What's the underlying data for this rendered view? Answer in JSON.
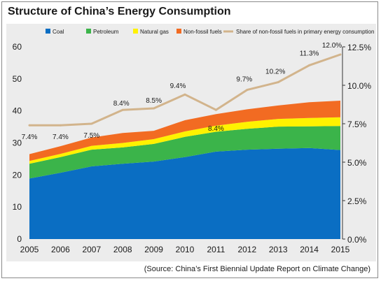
{
  "title": "Structure of China’s Energy Consumption",
  "source": "(Source: China’s First Biennial Update Report on Climate Change)",
  "colors": {
    "coal": "#0a6ec3",
    "petroleum": "#3bb44a",
    "natural_gas": "#fff200",
    "non_fossil": "#f26b22",
    "share_line": "#d2b48c",
    "panel": "#ececec"
  },
  "chart_data": {
    "type": "area",
    "stacked": true,
    "title": "Structure of China’s Energy Consumption",
    "x": [
      "2005",
      "2006",
      "2007",
      "2008",
      "2009",
      "2010",
      "2011",
      "2012",
      "2013",
      "2014",
      "2015"
    ],
    "series": [
      {
        "name": "Coal",
        "values": [
          18.9,
          20.7,
          22.7,
          23.5,
          24.2,
          25.6,
          27.3,
          27.9,
          28.2,
          28.4,
          27.8
        ],
        "color": "#0a6ec3"
      },
      {
        "name": "Petroleum",
        "values": [
          4.6,
          4.9,
          5.2,
          5.1,
          5.5,
          6.3,
          6.2,
          6.5,
          6.9,
          6.8,
          7.5
        ],
        "color": "#3bb44a"
      },
      {
        "name": "Natural gas",
        "values": [
          0.9,
          1.0,
          1.2,
          1.4,
          1.5,
          1.7,
          1.9,
          2.2,
          2.4,
          2.6,
          2.7
        ],
        "color": "#fff200"
      },
      {
        "name": "Non-fossil fuels",
        "values": [
          2.1,
          2.4,
          2.6,
          3.1,
          2.6,
          3.5,
          3.6,
          3.9,
          4.2,
          4.9,
          5.2
        ],
        "color": "#f26b22"
      }
    ],
    "line_series": {
      "name": "Share of non-fossil fuels in primary energy consumption",
      "axis": "right",
      "values": [
        7.4,
        7.4,
        7.5,
        8.4,
        8.5,
        9.4,
        8.4,
        9.7,
        10.2,
        11.3,
        12.0
      ],
      "labels": [
        "7.4%",
        "7.4%",
        "7.5%",
        "8.4%",
        "8.5%",
        "9.4%",
        "8.4%",
        "9.7%",
        "10.2%",
        "11.3%",
        "12.0%"
      ],
      "color": "#d2b48c"
    },
    "y_left": {
      "min": 0,
      "max": 60,
      "ticks": [
        "0",
        "10",
        "20",
        "30",
        "40",
        "50",
        "60"
      ]
    },
    "y_right": {
      "min": 0,
      "max": 12.5,
      "ticks": [
        "0.0%",
        "2.5%",
        "5.0%",
        "7.5%",
        "10.0%",
        "12.5%"
      ]
    },
    "legend": [
      "Coal",
      "Petroleum",
      "Natural gas",
      "Non-fossil fuels",
      "Share of non-fossil fuels in primary energy consumption"
    ],
    "legend_position": "top",
    "grid": false
  }
}
